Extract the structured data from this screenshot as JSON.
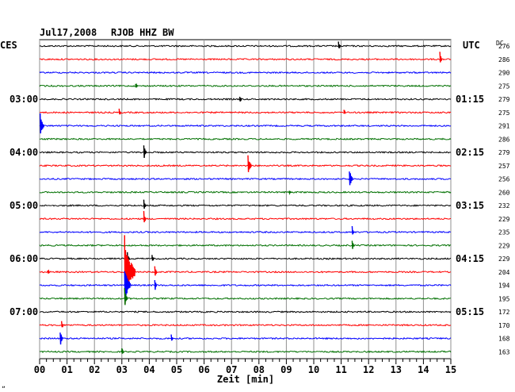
{
  "header": {
    "date": "Jul17,2008",
    "station": "RJOB HHZ BW",
    "left_tz": "CES",
    "right_tz": "UTC",
    "dc_label": "DC"
  },
  "footer": {
    "xlabel": "Zeit [min]",
    "corner_mark": "„"
  },
  "colors": {
    "trace_cycle": [
      "#000000",
      "#ff0000",
      "#0000ff",
      "#007000"
    ],
    "grid": "#909090",
    "text": "#000000"
  },
  "chart_data": {
    "type": "line",
    "title": "Jul17,2008   RJOB HHZ BW",
    "xlabel": "Zeit [min]",
    "ylabel": "",
    "x_ticks": [
      "00",
      "01",
      "02",
      "03",
      "04",
      "05",
      "06",
      "07",
      "08",
      "09",
      "10",
      "11",
      "12",
      "13",
      "14",
      "15"
    ],
    "x_range": [
      0,
      15
    ],
    "grid": true,
    "left_time_labels": [
      {
        "trace_index": 4,
        "label": "03:00"
      },
      {
        "trace_index": 8,
        "label": "04:00"
      },
      {
        "trace_index": 12,
        "label": "05:00"
      },
      {
        "trace_index": 16,
        "label": "06:00"
      },
      {
        "trace_index": 20,
        "label": "07:00"
      }
    ],
    "right_time_labels": [
      {
        "trace_index": 4,
        "label": "01:15"
      },
      {
        "trace_index": 8,
        "label": "02:15"
      },
      {
        "trace_index": 12,
        "label": "03:15"
      },
      {
        "trace_index": 16,
        "label": "04:15"
      },
      {
        "trace_index": 20,
        "label": "05:15"
      }
    ],
    "series": [
      {
        "dc": "276",
        "events": [
          {
            "x": 10.9,
            "amp": 0.4
          }
        ]
      },
      {
        "dc": "286",
        "events": [
          {
            "x": 14.6,
            "amp": 0.6
          }
        ]
      },
      {
        "dc": "290",
        "events": []
      },
      {
        "dc": "275",
        "events": [
          {
            "x": 3.5,
            "amp": 0.25
          }
        ]
      },
      {
        "dc": "279",
        "events": [
          {
            "x": 7.3,
            "amp": 0.3
          }
        ]
      },
      {
        "dc": "275",
        "events": [
          {
            "x": 2.9,
            "amp": 0.3
          },
          {
            "x": 11.1,
            "amp": 0.2
          }
        ]
      },
      {
        "dc": "291",
        "events": [
          {
            "x": 0.02,
            "amp": 1.0
          }
        ]
      },
      {
        "dc": "286",
        "events": []
      },
      {
        "dc": "279",
        "events": [
          {
            "x": 3.8,
            "amp": 0.7
          }
        ]
      },
      {
        "dc": "257",
        "events": [
          {
            "x": 7.6,
            "amp": 0.9
          }
        ]
      },
      {
        "dc": "256",
        "events": [
          {
            "x": 11.3,
            "amp": 0.9
          }
        ]
      },
      {
        "dc": "260",
        "events": [
          {
            "x": 9.1,
            "amp": 0.15
          }
        ]
      },
      {
        "dc": "232",
        "events": [
          {
            "x": 3.8,
            "amp": 0.6
          }
        ]
      },
      {
        "dc": "229",
        "events": [
          {
            "x": 3.8,
            "amp": 0.6
          }
        ]
      },
      {
        "dc": "235",
        "events": [
          {
            "x": 11.4,
            "amp": 0.5
          }
        ]
      },
      {
        "dc": "229",
        "events": [
          {
            "x": 11.4,
            "amp": 0.5
          }
        ]
      },
      {
        "dc": "229",
        "events": [
          {
            "x": 3.2,
            "amp": 0.6
          },
          {
            "x": 4.1,
            "amp": 0.3
          }
        ]
      },
      {
        "dc": "204",
        "events": [
          {
            "x": 3.1,
            "amp": 2.8
          },
          {
            "x": 4.2,
            "amp": 0.6
          },
          {
            "x": 0.3,
            "amp": 0.2
          }
        ]
      },
      {
        "dc": "194",
        "events": [
          {
            "x": 3.1,
            "amp": 1.6
          },
          {
            "x": 4.2,
            "amp": 0.6
          }
        ]
      },
      {
        "dc": "195",
        "events": [
          {
            "x": 3.1,
            "amp": 0.8
          }
        ]
      },
      {
        "dc": "172",
        "events": []
      },
      {
        "dc": "170",
        "events": [
          {
            "x": 0.8,
            "amp": 0.3
          }
        ]
      },
      {
        "dc": "168",
        "events": [
          {
            "x": 0.75,
            "amp": 0.7
          },
          {
            "x": 4.8,
            "amp": 0.3
          }
        ]
      },
      {
        "dc": "163",
        "events": [
          {
            "x": 3.0,
            "amp": 0.3
          }
        ]
      }
    ]
  }
}
